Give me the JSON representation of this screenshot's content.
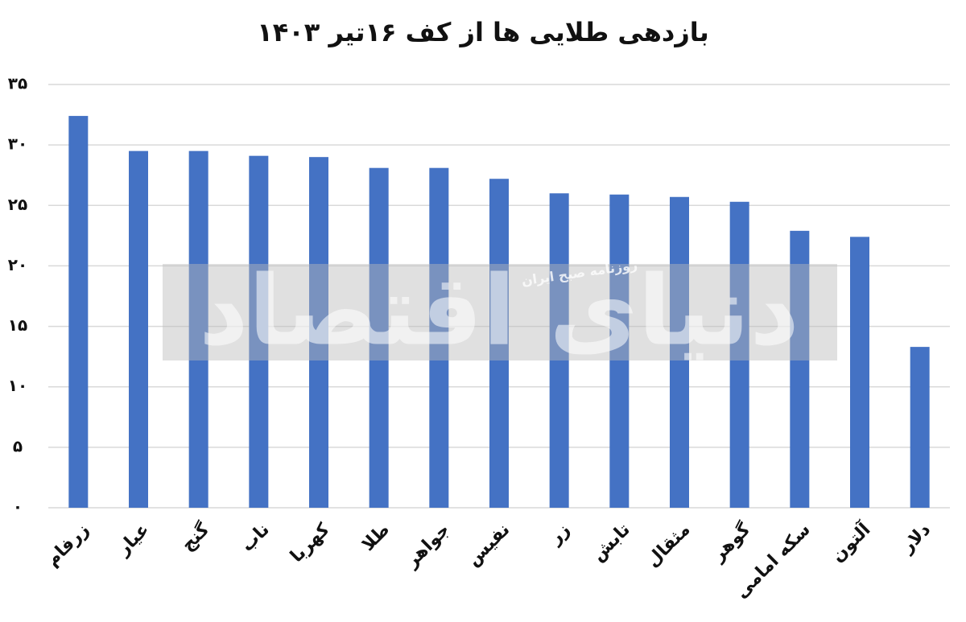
{
  "chart_data": {
    "type": "bar",
    "title": "بازدهی طلایی ها از کف ۱۶تیر ۱۴۰۳",
    "watermark": "دنیای اقتصاد",
    "watermark_subtitle": "روزنامه صبح ایران",
    "categories": [
      "زرفام",
      "عیار",
      "گنج",
      "ناب",
      "کهربا",
      "طلا",
      "جواهر",
      "نفیس",
      "زر",
      "تابش",
      "مثقال",
      "گوهر",
      "سکه امامی",
      "آلتون",
      "دلار"
    ],
    "values": [
      32.4,
      29.5,
      29.5,
      29.1,
      29.0,
      28.1,
      28.1,
      27.2,
      26.0,
      25.9,
      25.7,
      25.3,
      22.9,
      22.4,
      13.3
    ],
    "color": "#4472c4",
    "ylim": [
      0,
      35
    ],
    "yticks": [
      {
        "value": 0,
        "label": "۰"
      },
      {
        "value": 5,
        "label": "۵"
      },
      {
        "value": 10,
        "label": "۱۰"
      },
      {
        "value": 15,
        "label": "۱۵"
      },
      {
        "value": 20,
        "label": "۲۰"
      },
      {
        "value": 25,
        "label": "۲۵"
      },
      {
        "value": 30,
        "label": "۳۰"
      },
      {
        "value": 35,
        "label": "۳۵"
      }
    ],
    "grid": true
  }
}
